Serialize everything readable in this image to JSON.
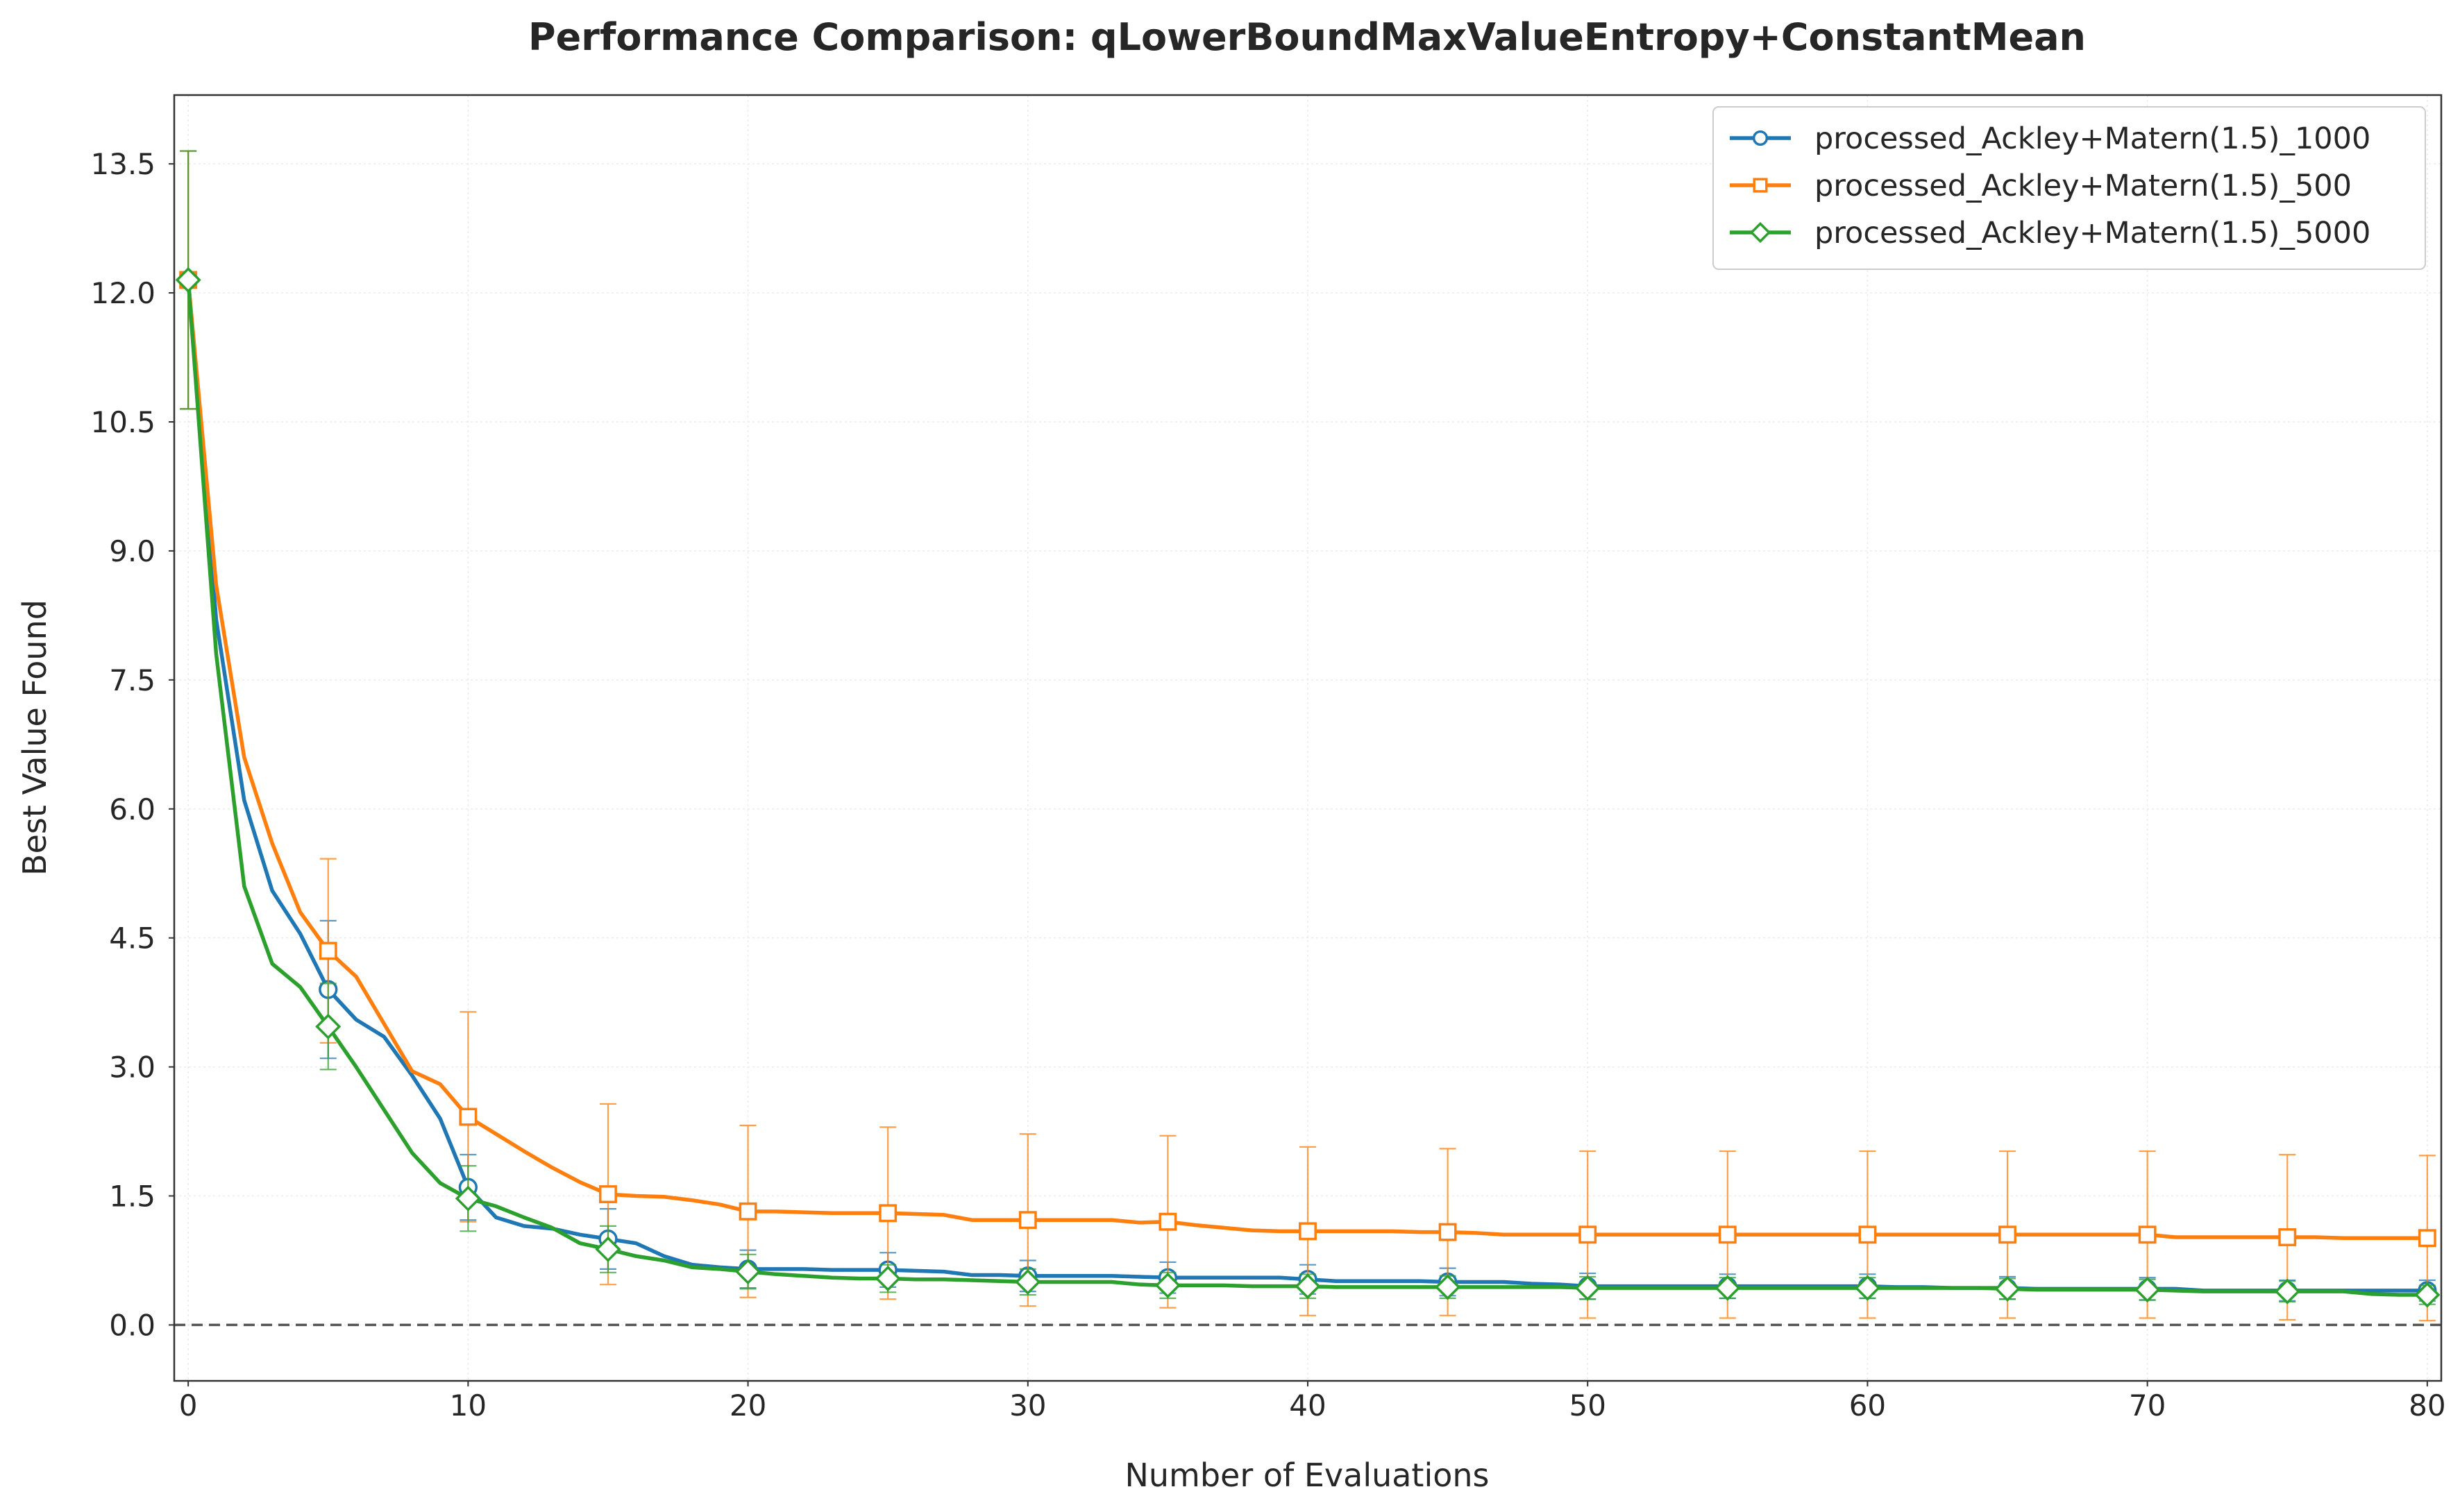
{
  "chart_data": {
    "type": "line",
    "title": "Performance Comparison: qLowerBoundMaxValueEntropy+ConstantMean",
    "xlabel": "Number of Evaluations",
    "ylabel": "Best Value Found",
    "xlim": [
      -0.5,
      80.5
    ],
    "ylim": [
      -0.65,
      14.3
    ],
    "x_ticks": [
      0,
      10,
      20,
      30,
      40,
      50,
      60,
      70,
      80
    ],
    "y_ticks": [
      0.0,
      1.5,
      3.0,
      4.5,
      6.0,
      7.5,
      9.0,
      10.5,
      12.0,
      13.5
    ],
    "y_tick_labels": [
      "0.0",
      "1.5",
      "3.0",
      "4.5",
      "6.0",
      "7.5",
      "9.0",
      "10.5",
      "12.0",
      "13.5"
    ],
    "grid": true,
    "legend_position": "top-right",
    "reference_line": {
      "y": 0.0,
      "style": "dashed"
    },
    "x": [
      0,
      1,
      2,
      3,
      4,
      5,
      6,
      7,
      8,
      9,
      10,
      11,
      12,
      13,
      14,
      15,
      16,
      17,
      18,
      19,
      20,
      21,
      22,
      23,
      24,
      25,
      26,
      27,
      28,
      29,
      30,
      31,
      32,
      33,
      34,
      35,
      36,
      37,
      38,
      39,
      40,
      41,
      42,
      43,
      44,
      45,
      46,
      47,
      48,
      49,
      50,
      51,
      52,
      53,
      54,
      55,
      56,
      57,
      58,
      59,
      60,
      61,
      62,
      63,
      64,
      65,
      66,
      67,
      68,
      69,
      70,
      71,
      72,
      73,
      74,
      75,
      76,
      77,
      78,
      79,
      80
    ],
    "marker_every": 5,
    "series": [
      {
        "name": "processed_Ackley+Matern(1.5)_1000",
        "color": "#1f77b4",
        "marker": "circle",
        "values": [
          12.15,
          8.2,
          6.1,
          5.05,
          4.55,
          3.9,
          3.55,
          3.35,
          2.9,
          2.4,
          1.6,
          1.25,
          1.15,
          1.12,
          1.05,
          1.0,
          0.95,
          0.8,
          0.7,
          0.67,
          0.65,
          0.65,
          0.65,
          0.64,
          0.64,
          0.64,
          0.63,
          0.62,
          0.58,
          0.58,
          0.57,
          0.57,
          0.57,
          0.57,
          0.56,
          0.55,
          0.55,
          0.55,
          0.55,
          0.55,
          0.53,
          0.51,
          0.51,
          0.51,
          0.51,
          0.5,
          0.5,
          0.5,
          0.48,
          0.47,
          0.45,
          0.45,
          0.45,
          0.45,
          0.45,
          0.45,
          0.45,
          0.45,
          0.45,
          0.45,
          0.45,
          0.44,
          0.44,
          0.43,
          0.43,
          0.43,
          0.42,
          0.42,
          0.42,
          0.42,
          0.42,
          0.42,
          0.4,
          0.4,
          0.4,
          0.4,
          0.4,
          0.4,
          0.4,
          0.4,
          0.4
        ],
        "error": [
          [
            0,
            1.5
          ],
          [
            5,
            0.8
          ],
          [
            10,
            0.38
          ],
          [
            15,
            0.35
          ],
          [
            20,
            0.22
          ],
          [
            25,
            0.2
          ],
          [
            30,
            0.18
          ],
          [
            35,
            0.18
          ],
          [
            40,
            0.17
          ],
          [
            45,
            0.16
          ],
          [
            50,
            0.15
          ],
          [
            55,
            0.14
          ],
          [
            60,
            0.14
          ],
          [
            65,
            0.13
          ],
          [
            70,
            0.13
          ],
          [
            75,
            0.12
          ],
          [
            80,
            0.12
          ]
        ]
      },
      {
        "name": "processed_Ackley+Matern(1.5)_500",
        "color": "#ff7f0e",
        "marker": "square",
        "values": [
          12.15,
          8.6,
          6.6,
          5.6,
          4.8,
          4.35,
          4.05,
          3.5,
          2.95,
          2.8,
          2.42,
          2.22,
          2.02,
          1.83,
          1.66,
          1.52,
          1.5,
          1.49,
          1.45,
          1.4,
          1.32,
          1.32,
          1.31,
          1.3,
          1.3,
          1.3,
          1.29,
          1.28,
          1.22,
          1.22,
          1.22,
          1.22,
          1.22,
          1.22,
          1.19,
          1.2,
          1.16,
          1.13,
          1.1,
          1.09,
          1.09,
          1.09,
          1.09,
          1.09,
          1.08,
          1.08,
          1.07,
          1.05,
          1.05,
          1.05,
          1.05,
          1.05,
          1.05,
          1.05,
          1.05,
          1.05,
          1.05,
          1.05,
          1.05,
          1.05,
          1.05,
          1.05,
          1.05,
          1.05,
          1.05,
          1.05,
          1.05,
          1.05,
          1.05,
          1.05,
          1.05,
          1.02,
          1.02,
          1.02,
          1.02,
          1.02,
          1.02,
          1.01,
          1.01,
          1.01,
          1.01
        ],
        "error": [
          [
            0,
            1.5
          ],
          [
            5,
            1.07
          ],
          [
            10,
            1.22
          ],
          [
            15,
            1.05
          ],
          [
            20,
            1.0
          ],
          [
            25,
            1.0
          ],
          [
            30,
            1.0
          ],
          [
            35,
            1.0
          ],
          [
            40,
            0.98
          ],
          [
            45,
            0.97
          ],
          [
            50,
            0.97
          ],
          [
            55,
            0.97
          ],
          [
            60,
            0.97
          ],
          [
            65,
            0.97
          ],
          [
            70,
            0.97
          ],
          [
            75,
            0.96
          ],
          [
            80,
            0.96
          ]
        ]
      },
      {
        "name": "processed_Ackley+Matern(1.5)_5000",
        "color": "#2ca02c",
        "marker": "diamond",
        "values": [
          12.15,
          7.8,
          5.1,
          4.2,
          3.93,
          3.47,
          3.0,
          2.5,
          2.0,
          1.65,
          1.47,
          1.38,
          1.25,
          1.13,
          0.95,
          0.88,
          0.8,
          0.75,
          0.67,
          0.65,
          0.62,
          0.59,
          0.57,
          0.55,
          0.54,
          0.54,
          0.53,
          0.53,
          0.52,
          0.51,
          0.5,
          0.5,
          0.5,
          0.5,
          0.47,
          0.46,
          0.46,
          0.46,
          0.45,
          0.45,
          0.45,
          0.44,
          0.44,
          0.44,
          0.44,
          0.44,
          0.44,
          0.44,
          0.44,
          0.44,
          0.43,
          0.43,
          0.43,
          0.43,
          0.43,
          0.43,
          0.43,
          0.43,
          0.43,
          0.43,
          0.43,
          0.43,
          0.43,
          0.43,
          0.43,
          0.42,
          0.41,
          0.41,
          0.41,
          0.41,
          0.41,
          0.4,
          0.39,
          0.39,
          0.39,
          0.39,
          0.39,
          0.39,
          0.36,
          0.35,
          0.35
        ],
        "error": [
          [
            0,
            1.5
          ],
          [
            5,
            0.5
          ],
          [
            10,
            0.38
          ],
          [
            15,
            0.27
          ],
          [
            20,
            0.2
          ],
          [
            25,
            0.16
          ],
          [
            30,
            0.15
          ],
          [
            35,
            0.15
          ],
          [
            40,
            0.14
          ],
          [
            45,
            0.13
          ],
          [
            50,
            0.13
          ],
          [
            55,
            0.12
          ],
          [
            60,
            0.12
          ],
          [
            65,
            0.12
          ],
          [
            70,
            0.12
          ],
          [
            75,
            0.12
          ],
          [
            80,
            0.11
          ]
        ]
      }
    ]
  }
}
